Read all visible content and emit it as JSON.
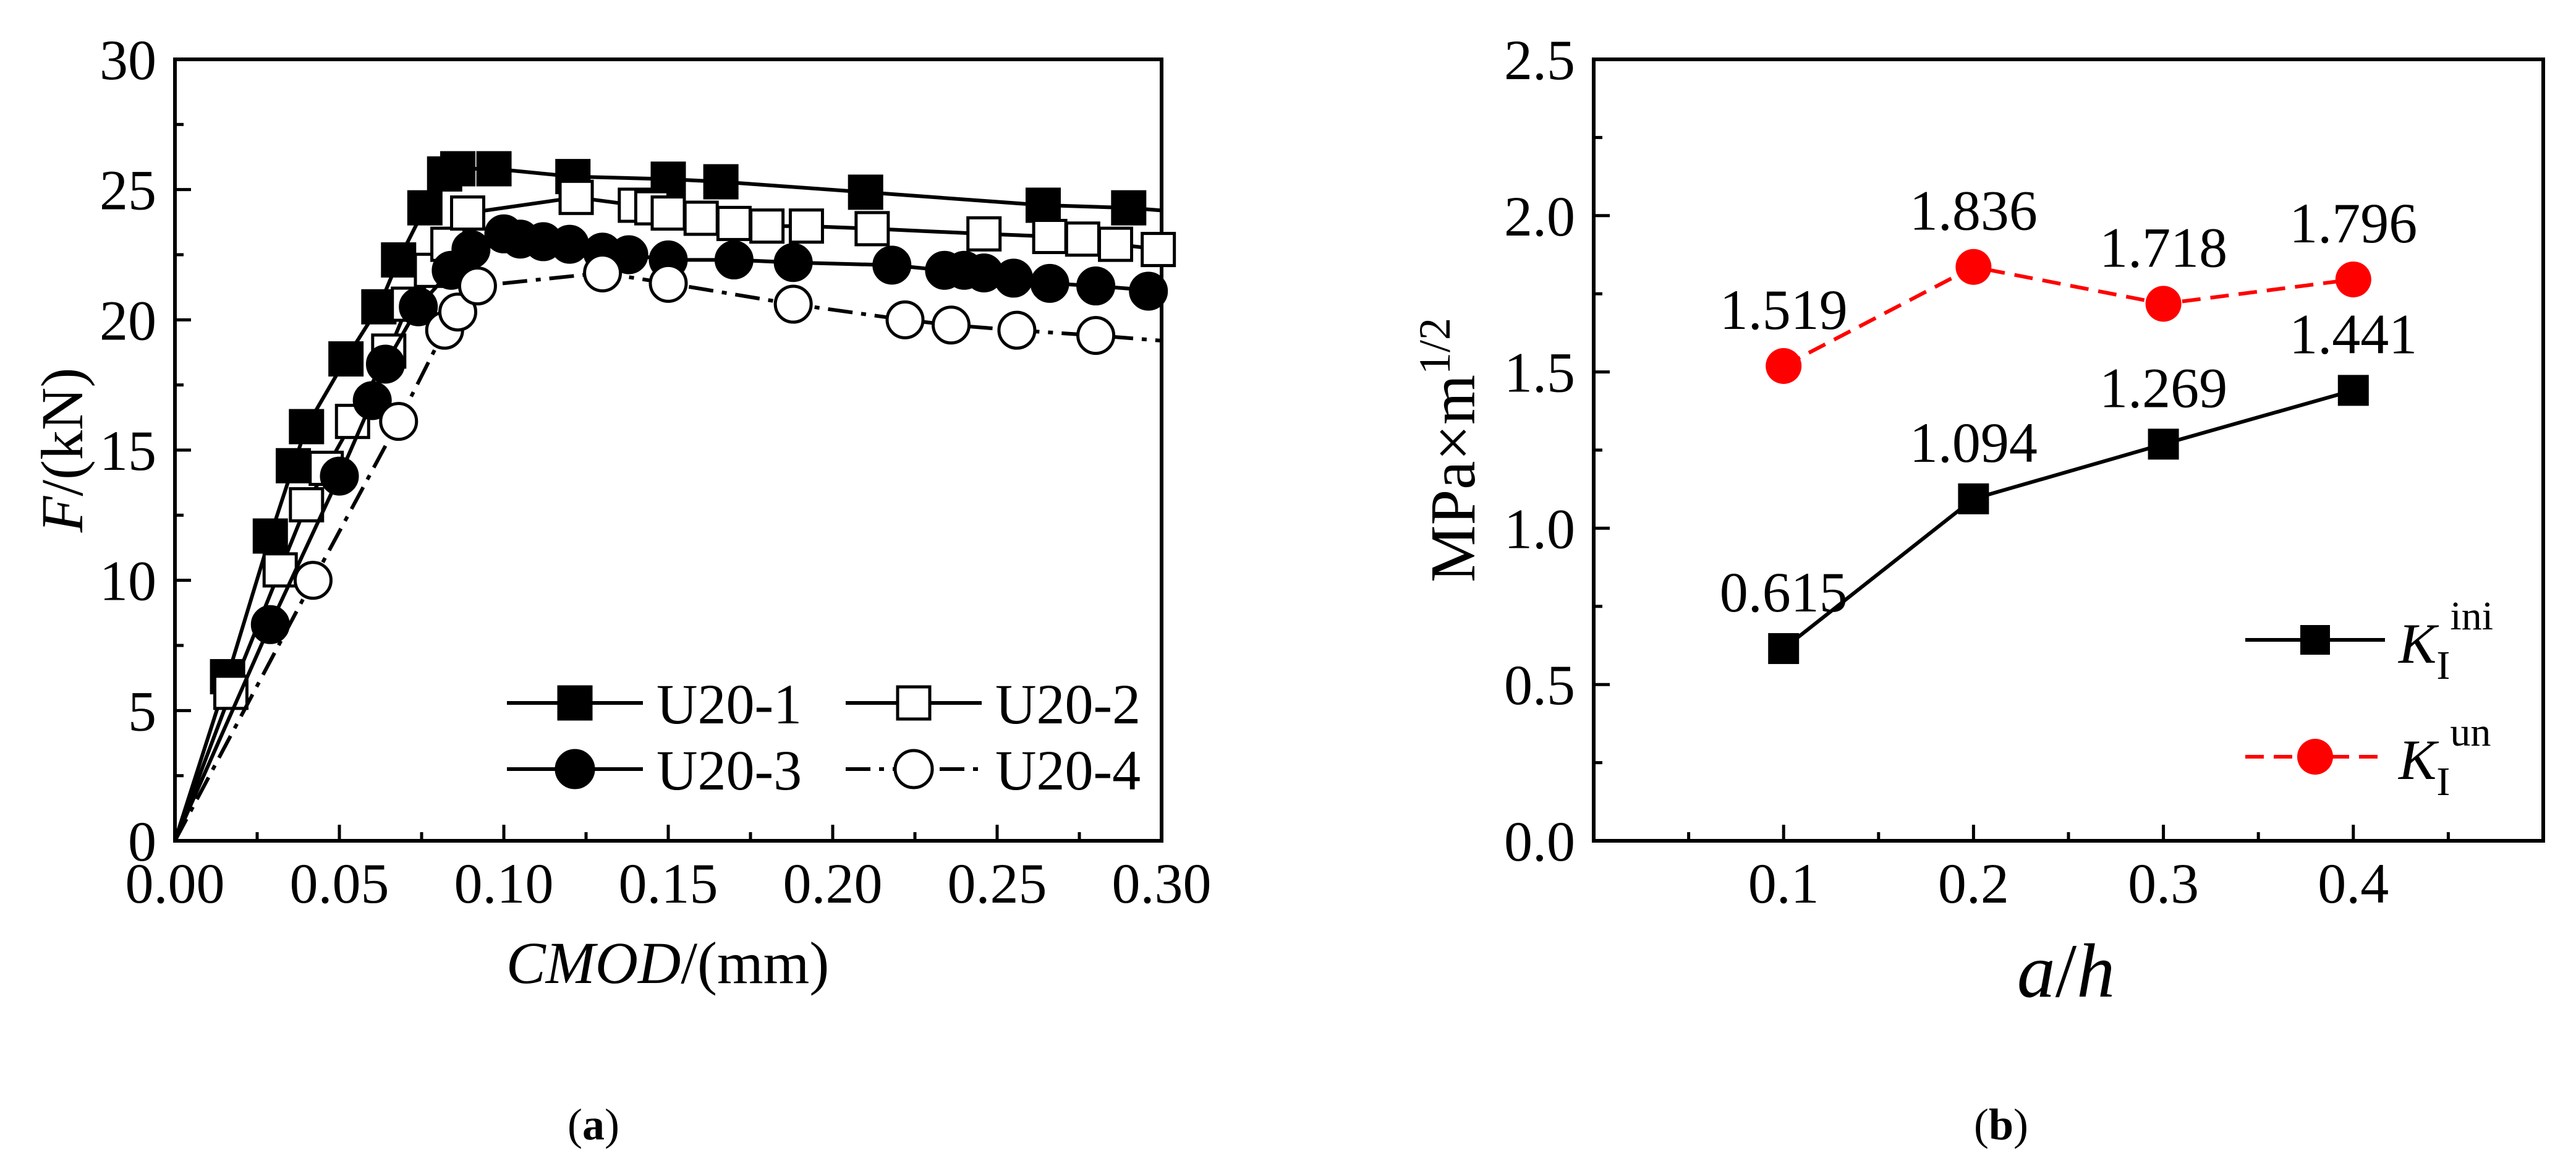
{
  "chart_data": [
    {
      "type": "line",
      "panel_label_prefix": "(",
      "panel_label_letter": "a",
      "panel_label_suffix": ")",
      "ylabel_var": "F",
      "ylabel_unit": "/(kN)",
      "xlabel_var": "CMOD",
      "xlabel_unit": "/(mm)",
      "xlim": [
        0,
        0.3
      ],
      "ylim": [
        0,
        30
      ],
      "xticks": [
        "0.00",
        "0.05",
        "0.10",
        "0.15",
        "0.20",
        "0.25",
        "0.30"
      ],
      "yticks": [
        "0",
        "5",
        "10",
        "15",
        "20",
        "25",
        "30"
      ],
      "legend_position": "bottom-right",
      "series": [
        {
          "name": "U20-1",
          "marker": "square",
          "filled": true,
          "dash": "solid",
          "line": [
            [
              0,
              0
            ],
            [
              0.016,
              6.3
            ],
            [
              0.029,
              11.7
            ],
            [
              0.036,
              14.4
            ],
            [
              0.04,
              15.9
            ],
            [
              0.052,
              18.5
            ],
            [
              0.062,
              20.5
            ],
            [
              0.068,
              22.3
            ],
            [
              0.076,
              24.3
            ],
            [
              0.082,
              25.6
            ],
            [
              0.086,
              25.8
            ],
            [
              0.097,
              25.8
            ],
            [
              0.121,
              25.5
            ],
            [
              0.15,
              25.4
            ],
            [
              0.166,
              25.3
            ],
            [
              0.21,
              24.9
            ],
            [
              0.264,
              24.4
            ],
            [
              0.29,
              24.3
            ],
            [
              0.3,
              24.2
            ]
          ],
          "points": [
            [
              0.016,
              6.3
            ],
            [
              0.029,
              11.7
            ],
            [
              0.036,
              14.4
            ],
            [
              0.04,
              15.9
            ],
            [
              0.052,
              18.5
            ],
            [
              0.062,
              20.5
            ],
            [
              0.068,
              22.3
            ],
            [
              0.076,
              24.3
            ],
            [
              0.082,
              25.6
            ],
            [
              0.086,
              25.8
            ],
            [
              0.097,
              25.8
            ],
            [
              0.121,
              25.5
            ],
            [
              0.15,
              25.4
            ],
            [
              0.166,
              25.3
            ],
            [
              0.21,
              24.9
            ],
            [
              0.264,
              24.4
            ],
            [
              0.29,
              24.3
            ]
          ]
        },
        {
          "name": "U20-2",
          "marker": "square",
          "filled": false,
          "dash": "solid",
          "line": [
            [
              0,
              0
            ],
            [
              0.017,
              5.7
            ],
            [
              0.032,
              10.4
            ],
            [
              0.04,
              12.9
            ],
            [
              0.046,
              14.3
            ],
            [
              0.054,
              16.1
            ],
            [
              0.065,
              18.8
            ],
            [
              0.071,
              20.6
            ],
            [
              0.078,
              21.9
            ],
            [
              0.083,
              22.9
            ],
            [
              0.089,
              24.1
            ],
            [
              0.122,
              24.7
            ],
            [
              0.14,
              24.4
            ],
            [
              0.15,
              24.1
            ],
            [
              0.16,
              23.9
            ],
            [
              0.17,
              23.7
            ],
            [
              0.18,
              23.6
            ],
            [
              0.192,
              23.6
            ],
            [
              0.212,
              23.5
            ],
            [
              0.246,
              23.3
            ],
            [
              0.266,
              23.2
            ],
            [
              0.276,
              23.1
            ],
            [
              0.286,
              22.9
            ],
            [
              0.3,
              22.7
            ]
          ],
          "points": [
            [
              0.017,
              5.7
            ],
            [
              0.032,
              10.4
            ],
            [
              0.04,
              12.9
            ],
            [
              0.046,
              14.3
            ],
            [
              0.054,
              16.1
            ],
            [
              0.065,
              18.8
            ],
            [
              0.071,
              20.6
            ],
            [
              0.078,
              21.9
            ],
            [
              0.083,
              22.9
            ],
            [
              0.089,
              24.1
            ],
            [
              0.122,
              24.7
            ],
            [
              0.14,
              24.4
            ],
            [
              0.145,
              24.3
            ],
            [
              0.15,
              24.1
            ],
            [
              0.16,
              23.9
            ],
            [
              0.17,
              23.7
            ],
            [
              0.18,
              23.6
            ],
            [
              0.192,
              23.6
            ],
            [
              0.212,
              23.5
            ],
            [
              0.246,
              23.3
            ],
            [
              0.266,
              23.2
            ],
            [
              0.276,
              23.1
            ],
            [
              0.286,
              22.9
            ],
            [
              0.299,
              22.7
            ]
          ]
        },
        {
          "name": "U20-3",
          "marker": "circle",
          "filled": true,
          "dash": "solid",
          "line": [
            [
              0,
              0
            ],
            [
              0.029,
              8.3
            ],
            [
              0.05,
              14.0
            ],
            [
              0.06,
              16.9
            ],
            [
              0.064,
              18.3
            ],
            [
              0.074,
              20.5
            ],
            [
              0.084,
              21.9
            ],
            [
              0.09,
              22.7
            ],
            [
              0.1,
              23.3
            ],
            [
              0.105,
              23.1
            ],
            [
              0.112,
              23.0
            ],
            [
              0.12,
              22.9
            ],
            [
              0.13,
              22.6
            ],
            [
              0.138,
              22.5
            ],
            [
              0.15,
              22.3
            ],
            [
              0.17,
              22.3
            ],
            [
              0.188,
              22.2
            ],
            [
              0.218,
              22.1
            ],
            [
              0.234,
              21.9
            ],
            [
              0.24,
              21.9
            ],
            [
              0.246,
              21.8
            ],
            [
              0.255,
              21.6
            ],
            [
              0.266,
              21.4
            ],
            [
              0.28,
              21.3
            ],
            [
              0.3,
              21.1
            ]
          ],
          "points": [
            [
              0.029,
              8.3
            ],
            [
              0.05,
              14.0
            ],
            [
              0.06,
              16.9
            ],
            [
              0.064,
              18.3
            ],
            [
              0.074,
              20.5
            ],
            [
              0.084,
              21.9
            ],
            [
              0.09,
              22.7
            ],
            [
              0.1,
              23.3
            ],
            [
              0.105,
              23.1
            ],
            [
              0.112,
              23.0
            ],
            [
              0.12,
              22.9
            ],
            [
              0.13,
              22.6
            ],
            [
              0.138,
              22.5
            ],
            [
              0.15,
              22.3
            ],
            [
              0.17,
              22.3
            ],
            [
              0.188,
              22.2
            ],
            [
              0.218,
              22.1
            ],
            [
              0.234,
              21.9
            ],
            [
              0.24,
              21.9
            ],
            [
              0.246,
              21.8
            ],
            [
              0.255,
              21.6
            ],
            [
              0.266,
              21.4
            ],
            [
              0.28,
              21.3
            ],
            [
              0.296,
              21.1
            ]
          ]
        },
        {
          "name": "U20-4",
          "marker": "circle",
          "filled": false,
          "dash": "dashdot",
          "line": [
            [
              0,
              0
            ],
            [
              0.042,
              10.0
            ],
            [
              0.068,
              16.1
            ],
            [
              0.082,
              19.6
            ],
            [
              0.086,
              20.3
            ],
            [
              0.092,
              21.3
            ],
            [
              0.13,
              21.8
            ],
            [
              0.15,
              21.4
            ],
            [
              0.188,
              20.6
            ],
            [
              0.222,
              20.0
            ],
            [
              0.236,
              19.8
            ],
            [
              0.256,
              19.6
            ],
            [
              0.28,
              19.4
            ],
            [
              0.3,
              19.2
            ]
          ],
          "points": [
            [
              0.042,
              10.0
            ],
            [
              0.068,
              16.1
            ],
            [
              0.082,
              19.6
            ],
            [
              0.086,
              20.3
            ],
            [
              0.092,
              21.3
            ],
            [
              0.13,
              21.8
            ],
            [
              0.15,
              21.4
            ],
            [
              0.188,
              20.6
            ],
            [
              0.222,
              20.0
            ],
            [
              0.236,
              19.8
            ],
            [
              0.256,
              19.6
            ],
            [
              0.28,
              19.4
            ]
          ]
        }
      ]
    },
    {
      "type": "line",
      "panel_label_prefix": "(",
      "panel_label_letter": "b",
      "panel_label_suffix": ")",
      "ylabel_main": "MPa×m",
      "ylabel_sup": "1/2",
      "xlabel_a": "a",
      "xlabel_slash": "/",
      "xlabel_b": "h",
      "xlim": [
        0.0,
        0.5
      ],
      "ylim": [
        0,
        2.5
      ],
      "xticks": [
        "0.1",
        "0.2",
        "0.3",
        "0.4"
      ],
      "yticks": [
        "0.0",
        "0.5",
        "1.0",
        "1.5",
        "2.0",
        "2.5"
      ],
      "legend_position": "right",
      "x": [
        0.1,
        0.2,
        0.3,
        0.4
      ],
      "series": [
        {
          "name_base": "K",
          "name_sub": "I",
          "name_sup": "ini",
          "marker": "square",
          "color": "#000000",
          "dash": "solid",
          "values": [
            0.615,
            1.094,
            1.269,
            1.441
          ],
          "labels": [
            "0.615",
            "1.094",
            "1.269",
            "1.441"
          ]
        },
        {
          "name_base": "K",
          "name_sub": "I",
          "name_sup": "un",
          "marker": "circle",
          "color": "#ff0000",
          "dash": "dashed",
          "values": [
            1.519,
            1.836,
            1.718,
            1.796
          ],
          "labels": [
            "1.519",
            "1.836",
            "1.718",
            "1.796"
          ]
        }
      ]
    }
  ]
}
